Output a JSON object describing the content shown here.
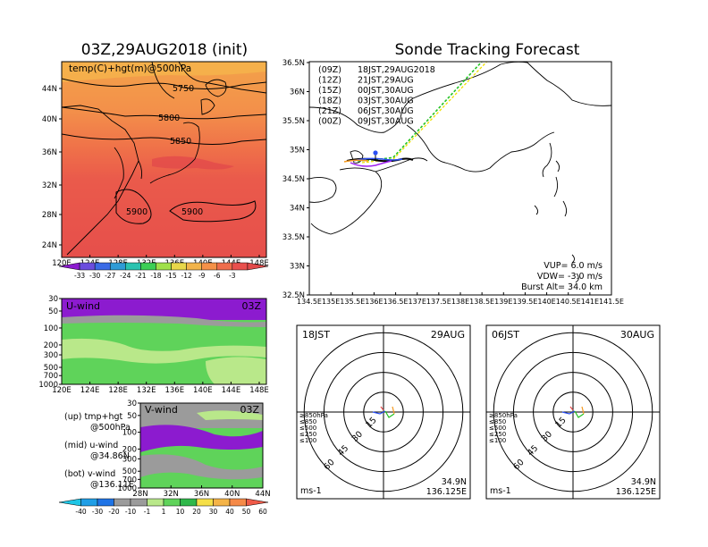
{
  "colors": {
    "temp_scale": [
      "#8c1bcf",
      "#6b4dde",
      "#3b6be6",
      "#2f9bd6",
      "#2bc3b0",
      "#3ccf55",
      "#9fe04a",
      "#e8d74a",
      "#f2b44b",
      "#f59148",
      "#ef6d4c",
      "#e9504d",
      "#e24a4a"
    ],
    "wind_scale": [
      "#1fc6e6",
      "#1f9ee6",
      "#1f74e6",
      "#9b9b9b",
      "#9b9b9b",
      "#b9e88a",
      "#5fd35a",
      "#2fb84a",
      "#f5df48",
      "#f5b448",
      "#f58a48",
      "#ef5a48"
    ],
    "track_colors": [
      "#000000",
      "#a020f0",
      "#2a4ff5",
      "#22c322",
      "#f0e000",
      "#f59a20"
    ]
  },
  "left_panel": {
    "title": "03Z,29AUG2018 (init)",
    "map_label": "temp(C)+hgt(m)@500hPa",
    "contour_labels": [
      "5750",
      "5800",
      "5850",
      "5900",
      "5900"
    ],
    "lat_ticks": [
      "44N",
      "40N",
      "36N",
      "32N",
      "28N",
      "24N"
    ],
    "lon_ticks": [
      "120E",
      "124E",
      "128E",
      "132E",
      "136E",
      "140E",
      "144E",
      "148E"
    ],
    "temp_colorbar_labels": [
      "-33",
      "-30",
      "-27",
      "-24",
      "-21",
      "-18",
      "-15",
      "-12",
      "-9",
      "-6",
      "-3"
    ],
    "u_wind": {
      "label": "U-wind",
      "time": "03Z",
      "p_ticks": [
        "30",
        "50",
        "100",
        "200",
        "300",
        "500",
        "700",
        "1000"
      ],
      "lon_ticks": [
        "120E",
        "124E",
        "128E",
        "132E",
        "136E",
        "140E",
        "144E",
        "148E"
      ]
    },
    "v_wind": {
      "label": "V-wind",
      "time": "03Z",
      "p_ticks": [
        "30",
        "50",
        "100",
        "200",
        "300",
        "500",
        "700",
        "1000"
      ],
      "lat_ticks": [
        "28N",
        "32N",
        "36N",
        "40N",
        "44N"
      ]
    },
    "legend_notes": [
      {
        "name": "(up) tmp+hgt",
        "detail": "@500hPa"
      },
      {
        "name": "(mid) u-wind",
        "detail": "@34.86N"
      },
      {
        "name": "(bot) v-wind",
        "detail": "@136.11E"
      }
    ],
    "wind_colorbar_labels": [
      "-40",
      "-30",
      "-20",
      "-10",
      "-1",
      "1",
      "10",
      "20",
      "30",
      "40",
      "50",
      "60"
    ]
  },
  "right_panel": {
    "title": "Sonde Tracking Forecast",
    "lat_ticks": [
      "36.5N",
      "36N",
      "35.5N",
      "35N",
      "34.5N",
      "34N",
      "33.5N",
      "33N",
      "32.5N"
    ],
    "lon_ticks": [
      "134.5E",
      "135E",
      "135.5E",
      "136E",
      "136.5E",
      "137E",
      "137.5E",
      "138E",
      "138.5E",
      "139E",
      "139.5E",
      "140E",
      "140.5E",
      "141E",
      "141.5E"
    ],
    "launches": [
      {
        "utc": "(09Z)",
        "local": "18JST,29AUG2018"
      },
      {
        "utc": "(12Z)",
        "local": "21JST,29AUG"
      },
      {
        "utc": "(15Z)",
        "local": "00JST,30AUG"
      },
      {
        "utc": "(18Z)",
        "local": "03JST,30AUG"
      },
      {
        "utc": "(21Z)",
        "local": "06JST,30AUG"
      },
      {
        "utc": "(00Z)",
        "local": "09JST,30AUG"
      }
    ],
    "params": {
      "vup": "VUP=  6.0 m/s",
      "vdw": "VDW= -3.0 m/s",
      "burst": "Burst Alt= 34.0 km"
    }
  },
  "hodographs": [
    {
      "time": "18JST",
      "date": "29AUG",
      "ring_labels": [
        "15",
        "30",
        "45",
        "60"
      ],
      "levels": [
        "≥850hPa",
        "≤850",
        "≤500",
        "≤250",
        "≤100"
      ],
      "unit": "ms-1",
      "lat": "34.9N",
      "lon": "136.125E"
    },
    {
      "time": "06JST",
      "date": "30AUG",
      "ring_labels": [
        "15",
        "30",
        "45",
        "60"
      ],
      "levels": [
        "≥850hPa",
        "≤850",
        "≤500",
        "≤250",
        "≤100"
      ],
      "unit": "ms-1",
      "lat": "34.9N",
      "lon": "136.125E"
    }
  ]
}
